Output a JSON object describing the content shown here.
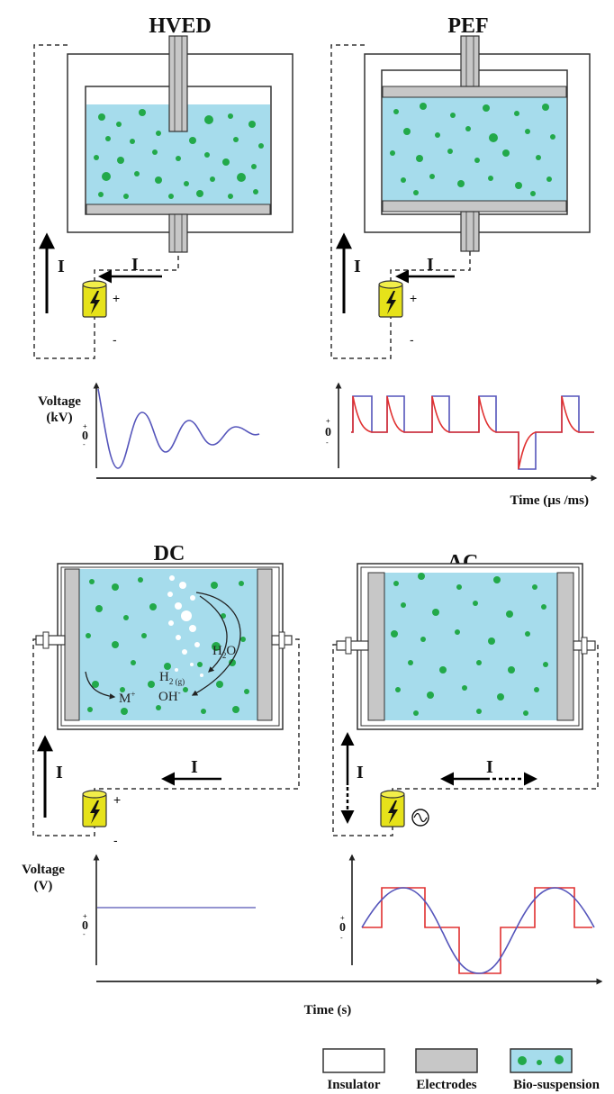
{
  "panels": {
    "hved": {
      "title": "HVED"
    },
    "pef": {
      "title": "PEF"
    },
    "dc": {
      "title": "DC"
    },
    "ac": {
      "title": "AC"
    }
  },
  "current_label": "I",
  "polarity": {
    "plus": "+",
    "minus": "-"
  },
  "chemistry": {
    "h2o": "H",
    "h2o_sub": "2",
    "h2o_tail": "O",
    "h2": "H",
    "h2_sub": "2 (g)",
    "oh": "OH",
    "oh_sup": "-",
    "m": "M",
    "m_sup": "+"
  },
  "plots": {
    "top_ylabel_line1": "Voltage",
    "top_ylabel_line2": "(kV)",
    "top_xlabel": "Time (µs /ms)",
    "bottom_ylabel_line1": "Voltage",
    "bottom_ylabel_line2": "(V)",
    "bottom_xlabel": "Time (s)",
    "zero": "0",
    "plus_tick": "+",
    "minus_tick": "-"
  },
  "legend": {
    "insulator": "Insulator",
    "electrodes": "Electrodes",
    "biosuspension": "Bio-suspension"
  },
  "colors": {
    "liquid": "#a6dcec",
    "particle": "#22a94a",
    "electrode": "#c7c7c7",
    "battery": "#e6e21a",
    "blue_wave": "#5555bb",
    "red_wave": "#e03030"
  }
}
